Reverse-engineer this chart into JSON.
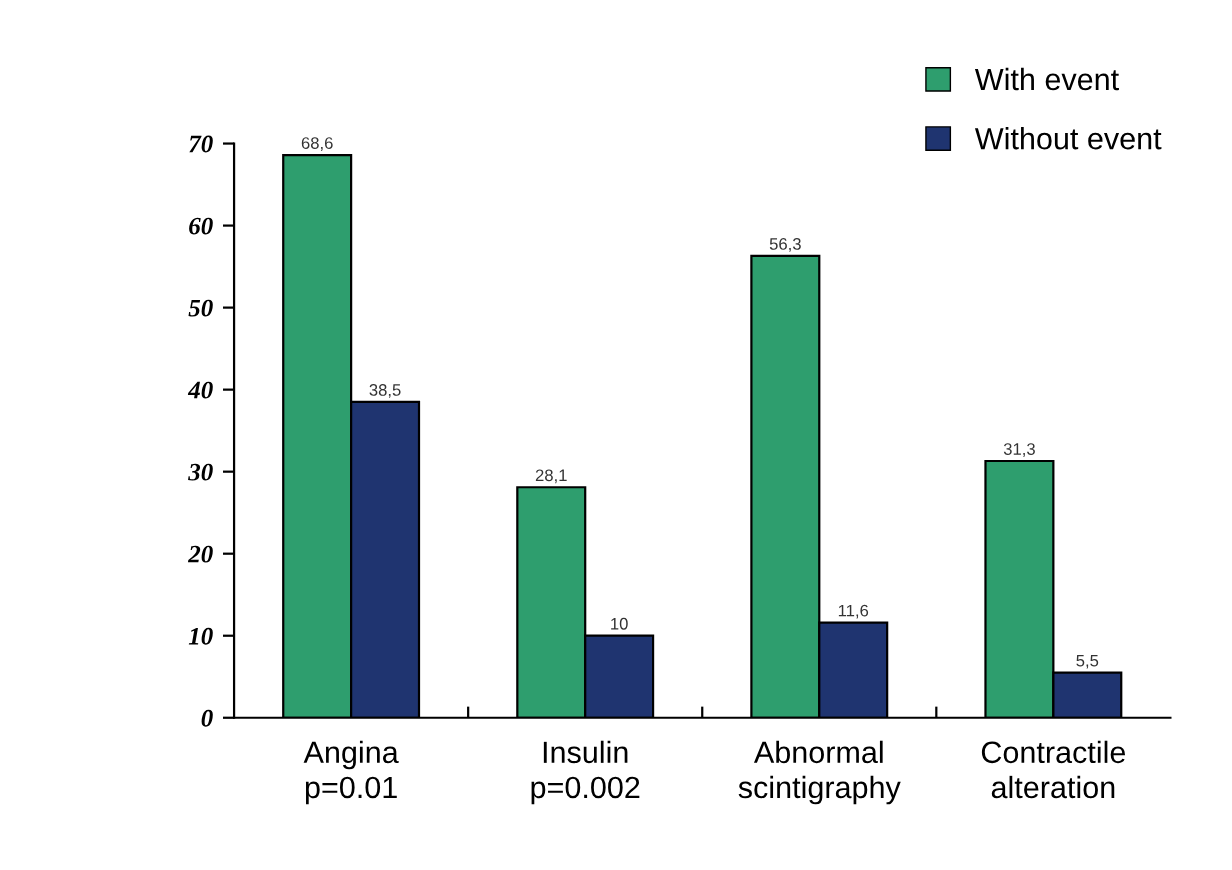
{
  "chart_data": {
    "type": "bar",
    "categories": [
      "Angina\np=0.01",
      "Insulin\np=0.002",
      "Abnormal\nscintigraphy",
      "Contractile\nalteration"
    ],
    "series": [
      {
        "name": "With event",
        "color": "#2e9e6e",
        "values": [
          68.6,
          28.1,
          56.3,
          31.3
        ],
        "value_labels": [
          "68,6",
          "28,1",
          "56,3",
          "31,3"
        ]
      },
      {
        "name": "Without event",
        "color": "#1f3470",
        "values": [
          38.5,
          10,
          11.6,
          5.5
        ],
        "value_labels": [
          "38,5",
          "10",
          "11,6",
          "5,5"
        ]
      }
    ],
    "ylim": [
      0,
      70
    ],
    "yticks": [
      0,
      10,
      20,
      30,
      40,
      50,
      60,
      70
    ],
    "grid": false,
    "legend": "top right"
  }
}
